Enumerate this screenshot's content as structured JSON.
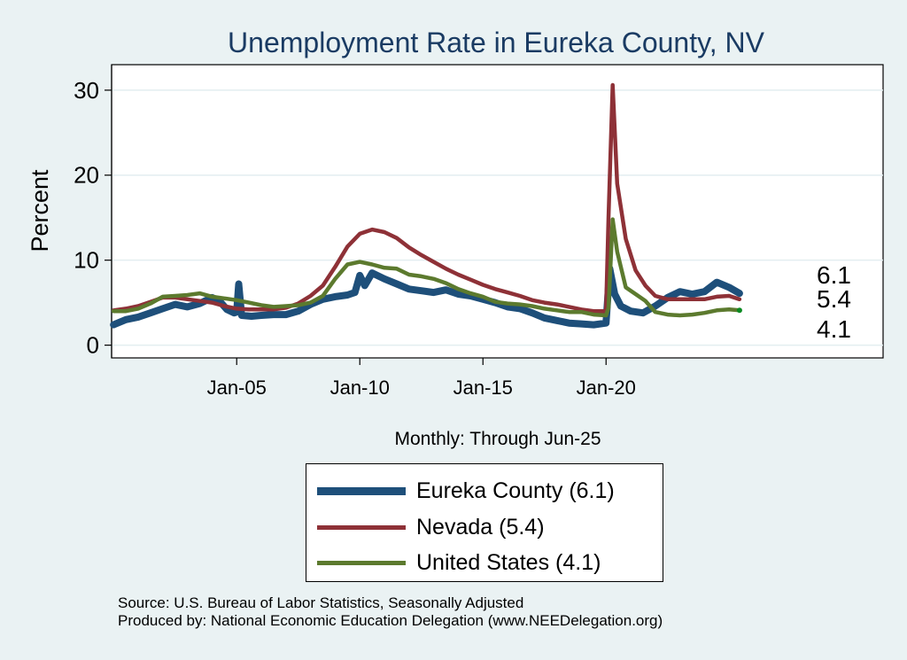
{
  "chart_data": {
    "type": "line",
    "title": "Unemployment Rate in Eureka  County, NV",
    "xlabel": "Monthly: Through Jun-25",
    "ylabel": "Percent",
    "x_range": [
      "Jan-00",
      "Jun-25"
    ],
    "ylim": [
      -1.5,
      33
    ],
    "yticks": [
      0,
      10,
      20,
      30
    ],
    "xticks": [
      {
        "x": 2005,
        "label": "Jan-05"
      },
      {
        "x": 2010,
        "label": "Jan-10"
      },
      {
        "x": 2015,
        "label": "Jan-15"
      },
      {
        "x": 2020,
        "label": "Jan-20"
      }
    ],
    "grid": true,
    "legend_position": "bottom",
    "end_labels": [
      "6.1",
      "5.4",
      "4.1"
    ],
    "series": [
      {
        "name": "Eureka  County",
        "legend": "Eureka  County (6.1)",
        "color": "#1e4f7a",
        "width": 8,
        "points": [
          [
            2000.0,
            2.4
          ],
          [
            2000.5,
            3.0
          ],
          [
            2001.0,
            3.3
          ],
          [
            2001.5,
            3.8
          ],
          [
            2002.0,
            4.3
          ],
          [
            2002.5,
            4.8
          ],
          [
            2003.0,
            4.5
          ],
          [
            2003.5,
            4.9
          ],
          [
            2004.0,
            5.6
          ],
          [
            2004.3,
            5.2
          ],
          [
            2004.6,
            4.2
          ],
          [
            2004.9,
            3.8
          ],
          [
            2005.0,
            3.9
          ],
          [
            2005.08,
            7.2
          ],
          [
            2005.2,
            3.5
          ],
          [
            2005.6,
            3.4
          ],
          [
            2006.0,
            3.5
          ],
          [
            2006.5,
            3.6
          ],
          [
            2007.0,
            3.6
          ],
          [
            2007.5,
            4.0
          ],
          [
            2008.0,
            4.8
          ],
          [
            2008.5,
            5.4
          ],
          [
            2009.0,
            5.7
          ],
          [
            2009.5,
            5.9
          ],
          [
            2009.8,
            6.2
          ],
          [
            2010.0,
            8.2
          ],
          [
            2010.2,
            7.0
          ],
          [
            2010.5,
            8.5
          ],
          [
            2011.0,
            7.8
          ],
          [
            2011.5,
            7.2
          ],
          [
            2012.0,
            6.6
          ],
          [
            2012.5,
            6.4
          ],
          [
            2013.0,
            6.2
          ],
          [
            2013.5,
            6.5
          ],
          [
            2014.0,
            6.0
          ],
          [
            2014.5,
            5.8
          ],
          [
            2015.0,
            5.4
          ],
          [
            2015.5,
            5.0
          ],
          [
            2016.0,
            4.5
          ],
          [
            2016.5,
            4.3
          ],
          [
            2017.0,
            3.8
          ],
          [
            2017.5,
            3.2
          ],
          [
            2018.0,
            2.9
          ],
          [
            2018.5,
            2.6
          ],
          [
            2019.0,
            2.5
          ],
          [
            2019.5,
            2.4
          ],
          [
            2020.0,
            2.6
          ],
          [
            2020.15,
            9.0
          ],
          [
            2020.35,
            6.0
          ],
          [
            2020.6,
            4.6
          ],
          [
            2021.0,
            4.0
          ],
          [
            2021.5,
            3.8
          ],
          [
            2022.0,
            4.6
          ],
          [
            2022.5,
            5.6
          ],
          [
            2023.0,
            6.3
          ],
          [
            2023.5,
            6.0
          ],
          [
            2024.0,
            6.3
          ],
          [
            2024.5,
            7.4
          ],
          [
            2025.0,
            6.8
          ],
          [
            2025.42,
            6.1
          ]
        ]
      },
      {
        "name": "Nevada",
        "legend": "Nevada (5.4)",
        "color": "#8e3137",
        "width": 4.5,
        "points": [
          [
            2000.0,
            4.1
          ],
          [
            2000.5,
            4.3
          ],
          [
            2001.0,
            4.6
          ],
          [
            2001.5,
            5.1
          ],
          [
            2002.0,
            5.6
          ],
          [
            2002.5,
            5.6
          ],
          [
            2003.0,
            5.4
          ],
          [
            2003.5,
            5.2
          ],
          [
            2004.0,
            5.0
          ],
          [
            2004.5,
            4.6
          ],
          [
            2005.0,
            4.3
          ],
          [
            2005.5,
            4.2
          ],
          [
            2006.0,
            4.2
          ],
          [
            2006.5,
            4.2
          ],
          [
            2007.0,
            4.4
          ],
          [
            2007.5,
            4.9
          ],
          [
            2008.0,
            5.8
          ],
          [
            2008.5,
            7.0
          ],
          [
            2009.0,
            9.2
          ],
          [
            2009.5,
            11.6
          ],
          [
            2010.0,
            13.1
          ],
          [
            2010.5,
            13.6
          ],
          [
            2011.0,
            13.3
          ],
          [
            2011.5,
            12.6
          ],
          [
            2012.0,
            11.5
          ],
          [
            2012.5,
            10.6
          ],
          [
            2013.0,
            9.8
          ],
          [
            2013.5,
            9.0
          ],
          [
            2014.0,
            8.3
          ],
          [
            2014.5,
            7.7
          ],
          [
            2015.0,
            7.1
          ],
          [
            2015.5,
            6.6
          ],
          [
            2016.0,
            6.2
          ],
          [
            2016.5,
            5.8
          ],
          [
            2017.0,
            5.3
          ],
          [
            2017.5,
            5.0
          ],
          [
            2018.0,
            4.8
          ],
          [
            2018.5,
            4.5
          ],
          [
            2019.0,
            4.2
          ],
          [
            2019.5,
            4.0
          ],
          [
            2020.0,
            4.0
          ],
          [
            2020.1,
            15.0
          ],
          [
            2020.27,
            30.6
          ],
          [
            2020.45,
            19.0
          ],
          [
            2020.8,
            12.5
          ],
          [
            2021.2,
            8.8
          ],
          [
            2021.6,
            7.0
          ],
          [
            2022.0,
            5.8
          ],
          [
            2022.5,
            5.4
          ],
          [
            2023.0,
            5.4
          ],
          [
            2023.5,
            5.4
          ],
          [
            2024.0,
            5.4
          ],
          [
            2024.5,
            5.7
          ],
          [
            2025.0,
            5.8
          ],
          [
            2025.42,
            5.4
          ]
        ]
      },
      {
        "name": "United States",
        "legend": "United States (4.1)",
        "color": "#5c7a2e",
        "width": 4.5,
        "points": [
          [
            2000.0,
            4.0
          ],
          [
            2000.5,
            4.0
          ],
          [
            2001.0,
            4.3
          ],
          [
            2001.5,
            4.9
          ],
          [
            2002.0,
            5.7
          ],
          [
            2002.5,
            5.8
          ],
          [
            2003.0,
            5.9
          ],
          [
            2003.5,
            6.1
          ],
          [
            2004.0,
            5.7
          ],
          [
            2004.5,
            5.5
          ],
          [
            2005.0,
            5.3
          ],
          [
            2005.5,
            5.0
          ],
          [
            2006.0,
            4.7
          ],
          [
            2006.5,
            4.5
          ],
          [
            2007.0,
            4.6
          ],
          [
            2007.5,
            4.7
          ],
          [
            2008.0,
            5.0
          ],
          [
            2008.5,
            5.8
          ],
          [
            2009.0,
            7.8
          ],
          [
            2009.5,
            9.5
          ],
          [
            2010.0,
            9.8
          ],
          [
            2010.5,
            9.5
          ],
          [
            2011.0,
            9.1
          ],
          [
            2011.5,
            9.0
          ],
          [
            2012.0,
            8.3
          ],
          [
            2012.5,
            8.1
          ],
          [
            2013.0,
            7.8
          ],
          [
            2013.5,
            7.3
          ],
          [
            2014.0,
            6.6
          ],
          [
            2014.5,
            6.1
          ],
          [
            2015.0,
            5.7
          ],
          [
            2015.5,
            5.1
          ],
          [
            2016.0,
            4.9
          ],
          [
            2016.5,
            4.8
          ],
          [
            2017.0,
            4.6
          ],
          [
            2017.5,
            4.3
          ],
          [
            2018.0,
            4.1
          ],
          [
            2018.5,
            3.9
          ],
          [
            2019.0,
            3.9
          ],
          [
            2019.5,
            3.6
          ],
          [
            2020.0,
            3.5
          ],
          [
            2020.1,
            4.4
          ],
          [
            2020.27,
            14.8
          ],
          [
            2020.45,
            11.0
          ],
          [
            2020.8,
            6.8
          ],
          [
            2021.2,
            6.0
          ],
          [
            2021.6,
            5.2
          ],
          [
            2022.0,
            3.9
          ],
          [
            2022.5,
            3.6
          ],
          [
            2023.0,
            3.5
          ],
          [
            2023.5,
            3.6
          ],
          [
            2024.0,
            3.8
          ],
          [
            2024.5,
            4.1
          ],
          [
            2025.0,
            4.2
          ],
          [
            2025.42,
            4.1
          ]
        ]
      }
    ]
  },
  "source_lines": [
    "Source: U.S. Bureau of Labor Statistics, Seasonally Adjusted",
    "Produced by: National Economic Education Delegation (www.NEEDelegation.org)"
  ]
}
